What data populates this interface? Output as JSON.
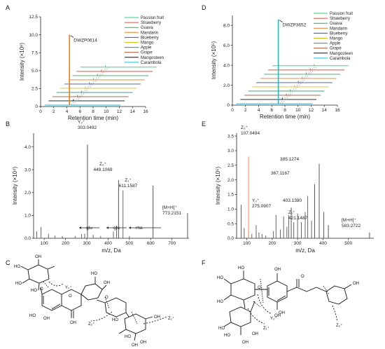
{
  "chart_data": [
    {
      "panel": "A",
      "type": "line",
      "xlabel": "Retention time (min)",
      "ylabel": "Intensity (×10⁶)",
      "xlim": [
        0,
        16
      ],
      "ylim": [
        0,
        12.5
      ],
      "xticks": [
        "0",
        "2",
        "4",
        "6",
        "8",
        "10",
        "12",
        "14",
        "16"
      ],
      "yticks": [
        "0",
        "2.5",
        "5.0",
        "7.5",
        "10.0",
        "12.5"
      ],
      "annotation": "DWZP0614",
      "peak": {
        "x": 4.4,
        "y": 10.0
      },
      "legend": [
        "Passion fruit",
        "Strawberry",
        "Guava",
        "Mandarin",
        "Blueberry",
        "Mango",
        "Apple",
        "Grape",
        "Mangosteen",
        "Carambola"
      ],
      "colors": [
        "#2ecc71",
        "#e74c3c",
        "#27ae60",
        "#e67e22",
        "#3f51b5",
        "#d4c21a",
        "#1a9e6a",
        "#a0522d",
        "#111111",
        "#17becf"
      ]
    },
    {
      "panel": "D",
      "type": "line",
      "xlabel": "Retention time (min)",
      "ylabel": "Intensity (×10⁵)",
      "xlim": [
        0,
        16
      ],
      "ylim": [
        0,
        9
      ],
      "xticks": [
        "0",
        "2",
        "4",
        "6",
        "8",
        "10",
        "12",
        "14",
        "16"
      ],
      "yticks": [
        "0",
        "2.0",
        "4.0",
        "6.0",
        "8.0"
      ],
      "annotation": "DWZP3652",
      "peak": {
        "x": 7.0,
        "y": 8.6
      },
      "legend": [
        "Passion fruit",
        "Strawberry",
        "Guava",
        "Mandarin",
        "Blueberry",
        "Mango",
        "Apple",
        "Grape",
        "Mangosteen",
        "Carambola"
      ],
      "colors": [
        "#2ecc71",
        "#e74c3c",
        "#27ae60",
        "#e67e22",
        "#3f51b5",
        "#d4c21a",
        "#1a9e6a",
        "#a0522d",
        "#111111",
        "#17becf"
      ]
    },
    {
      "panel": "B",
      "type": "bar",
      "xlabel": "m/z, Da",
      "ylabel": "Intensity (×10⁴)",
      "xlim": [
        50,
        780
      ],
      "ylim": [
        0,
        4.6
      ],
      "xticks": [
        "100",
        "200",
        "300",
        "400",
        "500",
        "600",
        "700"
      ],
      "yticks": [
        "0.0",
        "1.0",
        "2.0",
        "3.0",
        "4.0"
      ],
      "labeled_peaks": [
        {
          "mz": 303.0492,
          "y": 4.1,
          "ion": "Y₀⁺",
          "label": "303.0492"
        },
        {
          "mz": 449.1069,
          "y": 2.55,
          "ion": "Z₂⁺",
          "label": "449.1069"
        },
        {
          "mz": 611.1587,
          "y": 2.3,
          "ion": "Z₁⁺",
          "label": "611.1587"
        },
        {
          "mz": 773.2151,
          "y": 1.1,
          "ion": "[M+H]⁺",
          "label": "773.2151"
        }
      ],
      "minor_peaks": [
        [
          65,
          0.3
        ],
        [
          85,
          0.5
        ],
        [
          120,
          0.2
        ],
        [
          150,
          0.12
        ],
        [
          185,
          0.1
        ],
        [
          245,
          0.1
        ],
        [
          275,
          0.18
        ],
        [
          290,
          0.2
        ],
        [
          330,
          0.15
        ],
        [
          365,
          0.1
        ],
        [
          425,
          0.3
        ],
        [
          440,
          0.55
        ],
        [
          470,
          2.1
        ],
        [
          500,
          0.1
        ]
      ],
      "neutral_losses": [
        "-glu",
        "-glu",
        "-rha"
      ]
    },
    {
      "panel": "E",
      "type": "bar",
      "xlabel": "m/z, Da",
      "ylabel": "Intensity (×10⁵)",
      "xlim": [
        60,
        600
      ],
      "ylim": [
        0,
        3.6
      ],
      "xticks": [
        "100",
        "200",
        "300",
        "400",
        "500"
      ],
      "yticks": [
        "0.0",
        "0.5",
        "1.0",
        "1.5",
        "2.0",
        "2.5",
        "3.0",
        "3.5"
      ],
      "labeled_peaks": [
        {
          "mz": 107.0494,
          "y": 2.8,
          "ion": "Z₂⁺",
          "label": "107.0494"
        },
        {
          "mz": 385.1274,
          "y": 2.55,
          "ion": "",
          "label": "385.1274"
        },
        {
          "mz": 367.1167,
          "y": 1.85,
          "ion": "",
          "label": "367.1167"
        },
        {
          "mz": 275.0907,
          "y": 1.05,
          "ion": "Y₀⁺",
          "label": "275.0907"
        },
        {
          "mz": 403.138,
          "y": 0.9,
          "ion": "",
          "label": "403.1380"
        },
        {
          "mz": 421.1487,
          "y": 0.45,
          "ion": "Z₁⁺",
          "label": "421.1487"
        },
        {
          "mz": 583.2722,
          "y": 0.2,
          "ion": "[M+H]⁺",
          "label": "583.2722"
        }
      ],
      "minor_peaks": [
        [
          78,
          1.15
        ],
        [
          90,
          0.35
        ],
        [
          120,
          0.15
        ],
        [
          137,
          0.45
        ],
        [
          148,
          0.2
        ],
        [
          160,
          0.15
        ],
        [
          175,
          0.1
        ],
        [
          205,
          0.25
        ],
        [
          215,
          0.8
        ],
        [
          232,
          0.3
        ],
        [
          245,
          0.75
        ],
        [
          258,
          0.4
        ],
        [
          265,
          0.8
        ],
        [
          285,
          0.55
        ],
        [
          300,
          0.85
        ],
        [
          315,
          0.55
        ],
        [
          330,
          0.9
        ],
        [
          340,
          1.45
        ],
        [
          355,
          0.6
        ]
      ]
    }
  ],
  "panels": {
    "A": "A",
    "B": "B",
    "C": "C",
    "D": "D",
    "E": "E",
    "F": "F"
  },
  "structure_c": {
    "atom_labels": [
      "HO",
      "HO",
      "HO",
      "OH",
      "HO",
      "OH",
      "OH",
      "O",
      "O",
      "O",
      "OH",
      "HO",
      "HO",
      "OH",
      "HO",
      "OH",
      "OH"
    ],
    "fragments": [
      "Y₀⁺",
      "Z₂⁺",
      "Z₁⁺"
    ]
  },
  "structure_f": {
    "atom_labels": [
      "HO",
      "HO",
      "HO",
      "OH",
      "OH",
      "HO",
      "OH",
      "HO",
      "OH",
      "O",
      "OH",
      "OH",
      "O"
    ],
    "fragments": [
      "Y₀⁺",
      "Z₁⁺",
      "Z₂⁺"
    ]
  }
}
